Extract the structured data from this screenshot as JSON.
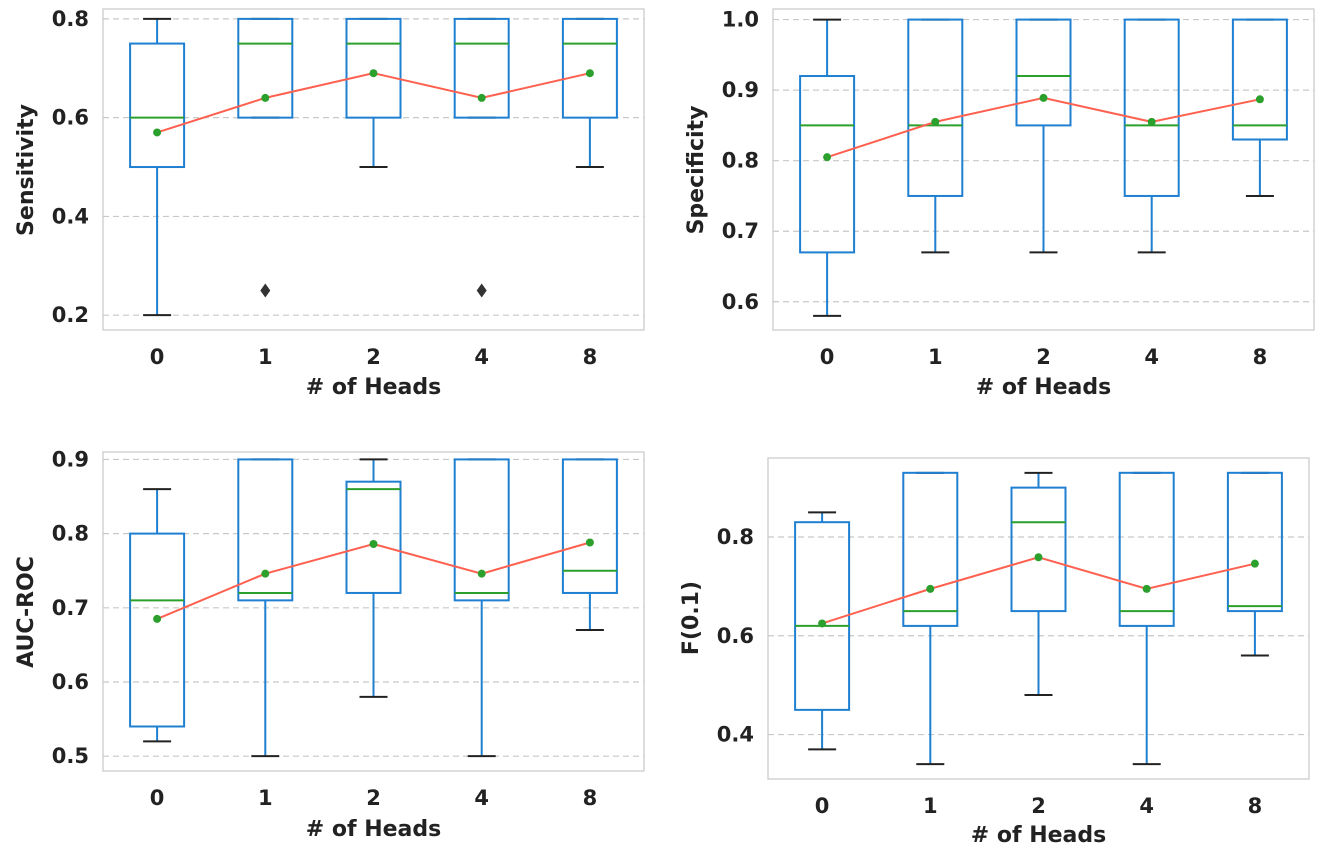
{
  "chart_data": [
    {
      "type": "box",
      "xlabel": "# of Heads",
      "ylabel": "Sensitivity",
      "categories": [
        "0",
        "1",
        "2",
        "4",
        "8"
      ],
      "ylim": [
        0.17,
        0.82
      ],
      "yticks": [
        0.2,
        0.4,
        0.6,
        0.8
      ],
      "ytick_labels": [
        "0.2",
        "0.4",
        "0.6",
        "0.8"
      ],
      "grid": true,
      "boxes": [
        {
          "whisker_low": 0.2,
          "q1": 0.5,
          "median": 0.6,
          "q3": 0.75,
          "whisker_high": 0.8,
          "outliers": []
        },
        {
          "whisker_low": 0.6,
          "q1": 0.6,
          "median": 0.75,
          "q3": 0.8,
          "whisker_high": 0.8,
          "outliers": [
            0.25
          ]
        },
        {
          "whisker_low": 0.5,
          "q1": 0.6,
          "median": 0.75,
          "q3": 0.8,
          "whisker_high": 0.8,
          "outliers": []
        },
        {
          "whisker_low": 0.6,
          "q1": 0.6,
          "median": 0.75,
          "q3": 0.8,
          "whisker_high": 0.8,
          "outliers": [
            0.25
          ]
        },
        {
          "whisker_low": 0.5,
          "q1": 0.6,
          "median": 0.75,
          "q3": 0.8,
          "whisker_high": 0.8,
          "outliers": []
        }
      ],
      "means": [
        0.57,
        0.64,
        0.69,
        0.64,
        0.69
      ]
    },
    {
      "type": "box",
      "xlabel": "# of Heads",
      "ylabel": "Specificity",
      "categories": [
        "0",
        "1",
        "2",
        "4",
        "8"
      ],
      "ylim": [
        0.56,
        1.015
      ],
      "yticks": [
        0.6,
        0.7,
        0.8,
        0.9,
        1.0
      ],
      "ytick_labels": [
        "0.6",
        "0.7",
        "0.8",
        "0.9",
        "1.0"
      ],
      "grid": true,
      "boxes": [
        {
          "whisker_low": 0.58,
          "q1": 0.67,
          "median": 0.85,
          "q3": 0.92,
          "whisker_high": 1.0,
          "outliers": []
        },
        {
          "whisker_low": 0.67,
          "q1": 0.75,
          "median": 0.85,
          "q3": 1.0,
          "whisker_high": 1.0,
          "outliers": []
        },
        {
          "whisker_low": 0.67,
          "q1": 0.85,
          "median": 0.92,
          "q3": 1.0,
          "whisker_high": 1.0,
          "outliers": []
        },
        {
          "whisker_low": 0.67,
          "q1": 0.75,
          "median": 0.85,
          "q3": 1.0,
          "whisker_high": 1.0,
          "outliers": []
        },
        {
          "whisker_low": 0.75,
          "q1": 0.83,
          "median": 0.85,
          "q3": 1.0,
          "whisker_high": 1.0,
          "outliers": []
        }
      ],
      "means": [
        0.805,
        0.855,
        0.889,
        0.855,
        0.887
      ]
    },
    {
      "type": "box",
      "xlabel": "# of Heads",
      "ylabel": "AUC-ROC",
      "categories": [
        "0",
        "1",
        "2",
        "4",
        "8"
      ],
      "ylim": [
        0.48,
        0.91
      ],
      "yticks": [
        0.5,
        0.6,
        0.7,
        0.8,
        0.9
      ],
      "ytick_labels": [
        "0.5",
        "0.6",
        "0.7",
        "0.8",
        "0.9"
      ],
      "grid": true,
      "boxes": [
        {
          "whisker_low": 0.52,
          "q1": 0.54,
          "median": 0.71,
          "q3": 0.8,
          "whisker_high": 0.86,
          "outliers": []
        },
        {
          "whisker_low": 0.5,
          "q1": 0.71,
          "median": 0.72,
          "q3": 0.9,
          "whisker_high": 0.9,
          "outliers": []
        },
        {
          "whisker_low": 0.58,
          "q1": 0.72,
          "median": 0.86,
          "q3": 0.87,
          "whisker_high": 0.9,
          "outliers": []
        },
        {
          "whisker_low": 0.5,
          "q1": 0.71,
          "median": 0.72,
          "q3": 0.9,
          "whisker_high": 0.9,
          "outliers": []
        },
        {
          "whisker_low": 0.67,
          "q1": 0.72,
          "median": 0.75,
          "q3": 0.9,
          "whisker_high": 0.9,
          "outliers": []
        }
      ],
      "means": [
        0.685,
        0.746,
        0.786,
        0.746,
        0.788
      ]
    },
    {
      "type": "box",
      "xlabel": "# of Heads",
      "ylabel": "F(0.1)",
      "categories": [
        "0",
        "1",
        "2",
        "4",
        "8"
      ],
      "ylim": [
        0.31,
        0.96
      ],
      "yticks": [
        0.4,
        0.6,
        0.8
      ],
      "ytick_labels": [
        "0.4",
        "0.6",
        "0.8"
      ],
      "grid": true,
      "boxes": [
        {
          "whisker_low": 0.37,
          "q1": 0.45,
          "median": 0.62,
          "q3": 0.83,
          "whisker_high": 0.85,
          "outliers": []
        },
        {
          "whisker_low": 0.34,
          "q1": 0.62,
          "median": 0.65,
          "q3": 0.93,
          "whisker_high": 0.93,
          "outliers": []
        },
        {
          "whisker_low": 0.48,
          "q1": 0.65,
          "median": 0.83,
          "q3": 0.9,
          "whisker_high": 0.93,
          "outliers": []
        },
        {
          "whisker_low": 0.34,
          "q1": 0.62,
          "median": 0.65,
          "q3": 0.93,
          "whisker_high": 0.93,
          "outliers": []
        },
        {
          "whisker_low": 0.56,
          "q1": 0.65,
          "median": 0.66,
          "q3": 0.93,
          "whisker_high": 0.93,
          "outliers": []
        }
      ],
      "means": [
        0.625,
        0.695,
        0.759,
        0.695,
        0.746
      ]
    }
  ],
  "colors": {
    "box": "#1f7fd1",
    "median": "#2ca02c",
    "mean_line": "#ff6150",
    "mean_marker": "#2ca02c",
    "whisker_cap": "#222222",
    "grid": "#c8c8c8",
    "frame": "#cccccc",
    "text": "#222222"
  }
}
